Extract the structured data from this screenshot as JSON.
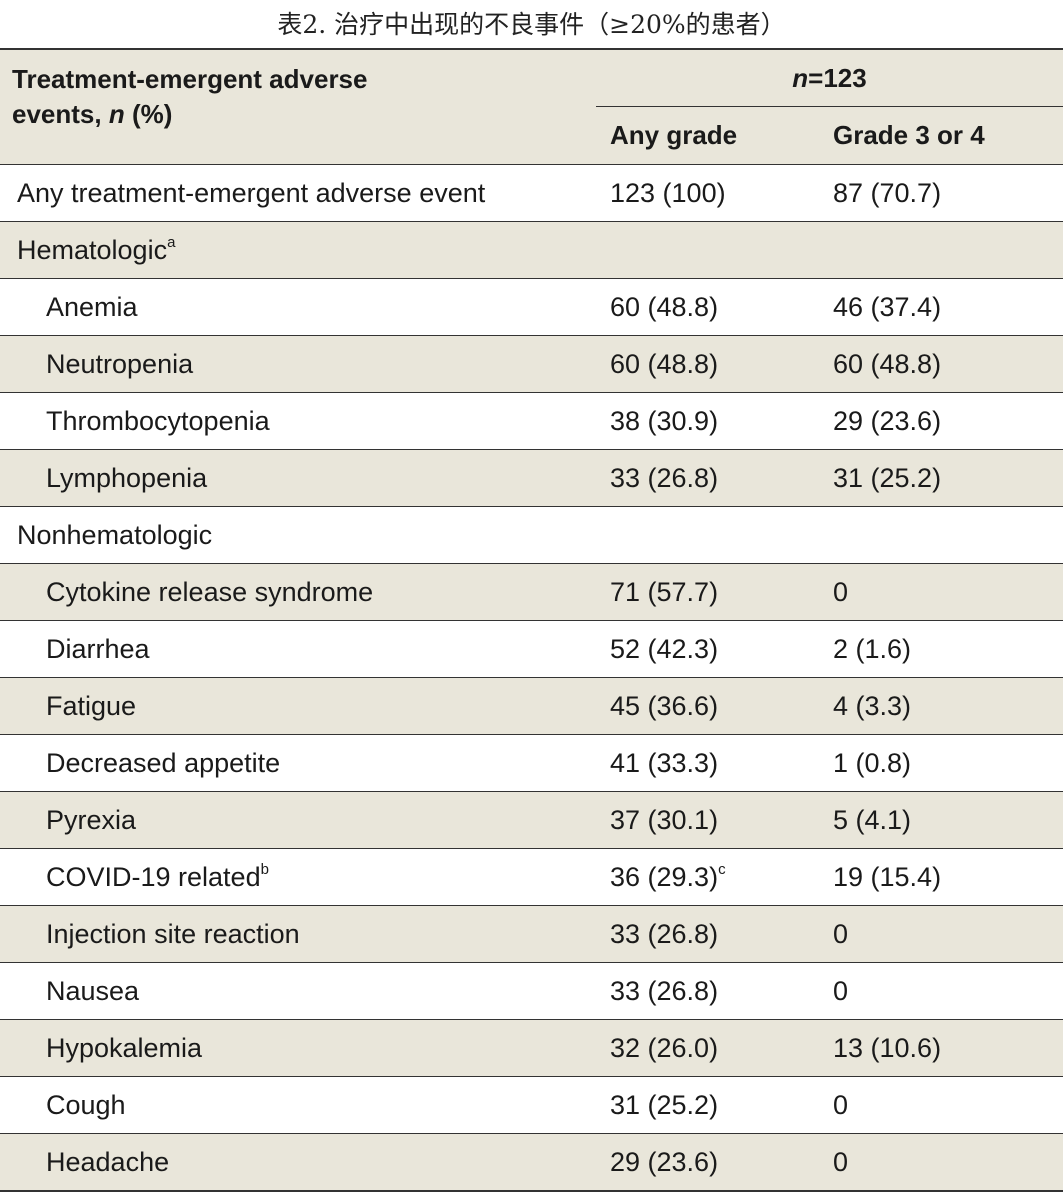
{
  "caption": "表2. 治疗中出现的不良事件（≥20%的患者）",
  "header": {
    "label_line1": "Treatment-emergent adverse",
    "label_line2_pre": "events, ",
    "label_line2_n": "n",
    "label_line2_post": " (%)",
    "n_italic": "n",
    "n_value": "=123",
    "col_any": "Any grade",
    "col_grade34": "Grade 3 or 4"
  },
  "rows": [
    {
      "label": "Any treatment-emergent adverse event",
      "sup": "",
      "any": "123 (100)",
      "any_sup": "",
      "g34": "87 (70.7)",
      "indent": false,
      "shade": "white"
    },
    {
      "label": "Hematologic",
      "sup": "a",
      "any": "",
      "any_sup": "",
      "g34": "",
      "indent": false,
      "shade": "alt"
    },
    {
      "label": "Anemia",
      "sup": "",
      "any": "60 (48.8)",
      "any_sup": "",
      "g34": "46 (37.4)",
      "indent": true,
      "shade": "white"
    },
    {
      "label": "Neutropenia",
      "sup": "",
      "any": "60 (48.8)",
      "any_sup": "",
      "g34": "60 (48.8)",
      "indent": true,
      "shade": "alt"
    },
    {
      "label": "Thrombocytopenia",
      "sup": "",
      "any": "38 (30.9)",
      "any_sup": "",
      "g34": "29 (23.6)",
      "indent": true,
      "shade": "white"
    },
    {
      "label": "Lymphopenia",
      "sup": "",
      "any": "33 (26.8)",
      "any_sup": "",
      "g34": "31 (25.2)",
      "indent": true,
      "shade": "alt"
    },
    {
      "label": "Nonhematologic",
      "sup": "",
      "any": "",
      "any_sup": "",
      "g34": "",
      "indent": false,
      "shade": "white"
    },
    {
      "label": "Cytokine release syndrome",
      "sup": "",
      "any": "71 (57.7)",
      "any_sup": "",
      "g34": "0",
      "indent": true,
      "shade": "alt"
    },
    {
      "label": "Diarrhea",
      "sup": "",
      "any": "52 (42.3)",
      "any_sup": "",
      "g34": "2 (1.6)",
      "indent": true,
      "shade": "white"
    },
    {
      "label": "Fatigue",
      "sup": "",
      "any": "45 (36.6)",
      "any_sup": "",
      "g34": "4 (3.3)",
      "indent": true,
      "shade": "alt"
    },
    {
      "label": "Decreased appetite",
      "sup": "",
      "any": "41 (33.3)",
      "any_sup": "",
      "g34": "1 (0.8)",
      "indent": true,
      "shade": "white"
    },
    {
      "label": "Pyrexia",
      "sup": "",
      "any": "37 (30.1)",
      "any_sup": "",
      "g34": "5 (4.1)",
      "indent": true,
      "shade": "alt"
    },
    {
      "label": "COVID-19 related",
      "sup": "b",
      "any": "36 (29.3)",
      "any_sup": "c",
      "g34": "19 (15.4)",
      "indent": true,
      "shade": "white"
    },
    {
      "label": "Injection site reaction",
      "sup": "",
      "any": "33 (26.8)",
      "any_sup": "",
      "g34": "0",
      "indent": true,
      "shade": "alt"
    },
    {
      "label": "Nausea",
      "sup": "",
      "any": "33 (26.8)",
      "any_sup": "",
      "g34": "0",
      "indent": true,
      "shade": "white"
    },
    {
      "label": "Hypokalemia",
      "sup": "",
      "any": "32 (26.0)",
      "any_sup": "",
      "g34": "13 (10.6)",
      "indent": true,
      "shade": "alt"
    },
    {
      "label": "Cough",
      "sup": "",
      "any": "31 (25.2)",
      "any_sup": "",
      "g34": "0",
      "indent": true,
      "shade": "white"
    },
    {
      "label": "Headache",
      "sup": "",
      "any": "29 (23.6)",
      "any_sup": "",
      "g34": "0",
      "indent": true,
      "shade": "alt"
    }
  ]
}
